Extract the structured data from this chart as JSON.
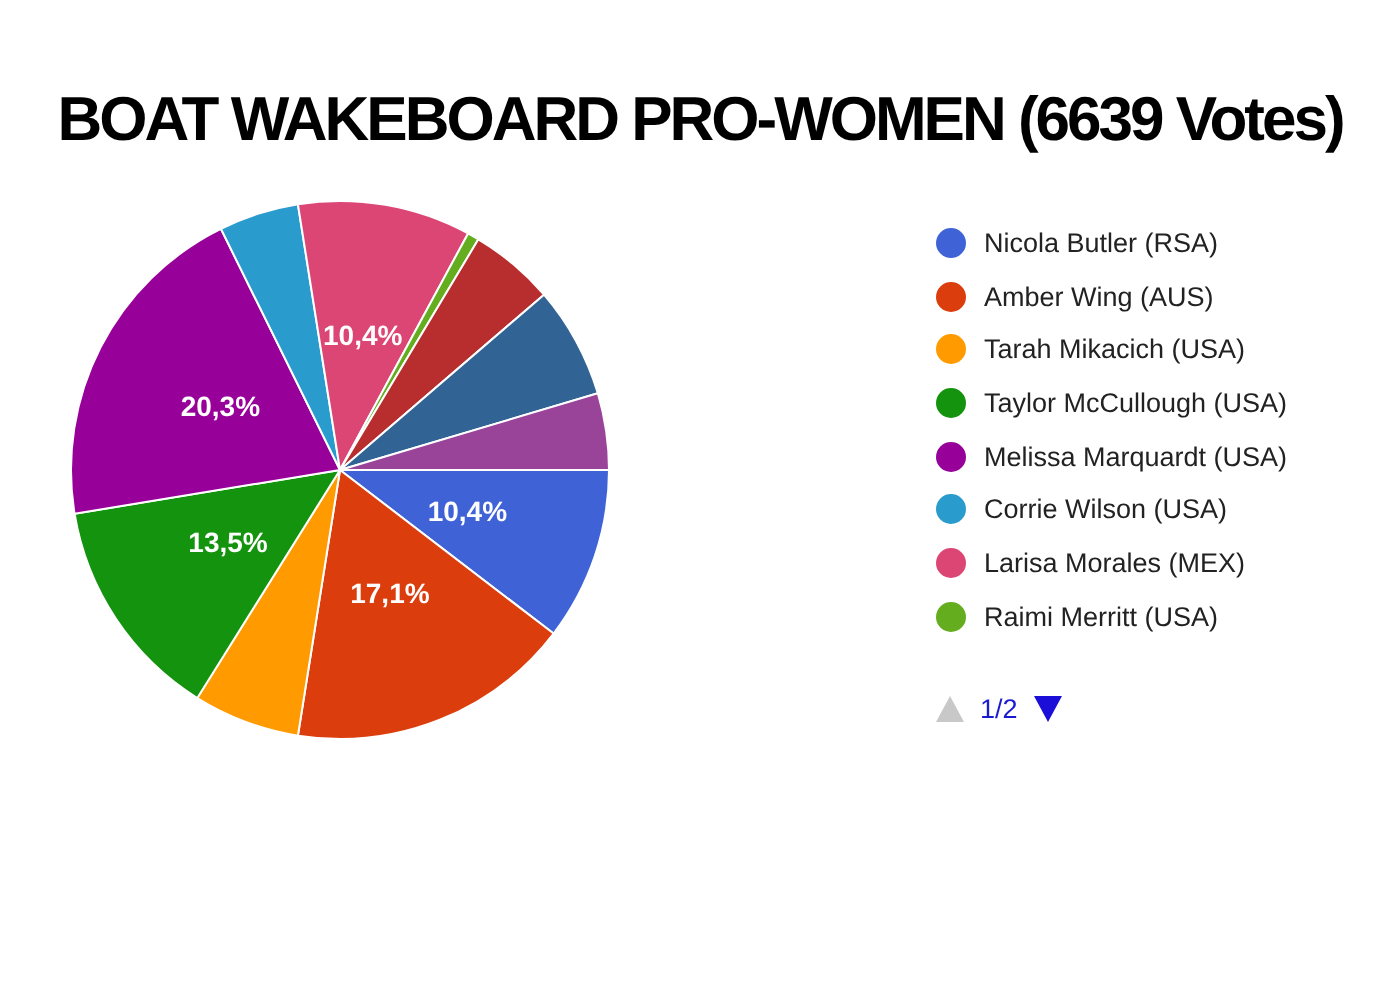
{
  "chart_data": {
    "type": "pie",
    "title": "BOAT WAKEBOARD PRO-WOMEN (6639 Votes)",
    "categories": [
      "Nicola Butler (RSA)",
      "Amber Wing (AUS)",
      "Tarah Mikacich (USA)",
      "Taylor McCullough (USA)",
      "Melissa Marquardt (USA)",
      "Corrie Wilson (USA)",
      "Larisa Morales (MEX)",
      "Raimi Merritt (USA)",
      null,
      null,
      null
    ],
    "values": [
      10.4,
      17.1,
      6.4,
      13.5,
      20.3,
      4.8,
      10.4,
      0.7,
      5.1,
      6.7,
      4.6
    ],
    "colors": [
      "#3f63d6",
      "#dc3d0d",
      "#ff9a00",
      "#14930f",
      "#970099",
      "#2a9bcd",
      "#dc4675",
      "#63ad1e",
      "#b82e2e",
      "#316395",
      "#994499"
    ],
    "value_labels": [
      "10,4%",
      "17,1%",
      null,
      "13,5%",
      "20,3%",
      null,
      "10,4%",
      null,
      null,
      null,
      null
    ],
    "legend": "right",
    "annotations": [
      "1/2"
    ]
  }
}
